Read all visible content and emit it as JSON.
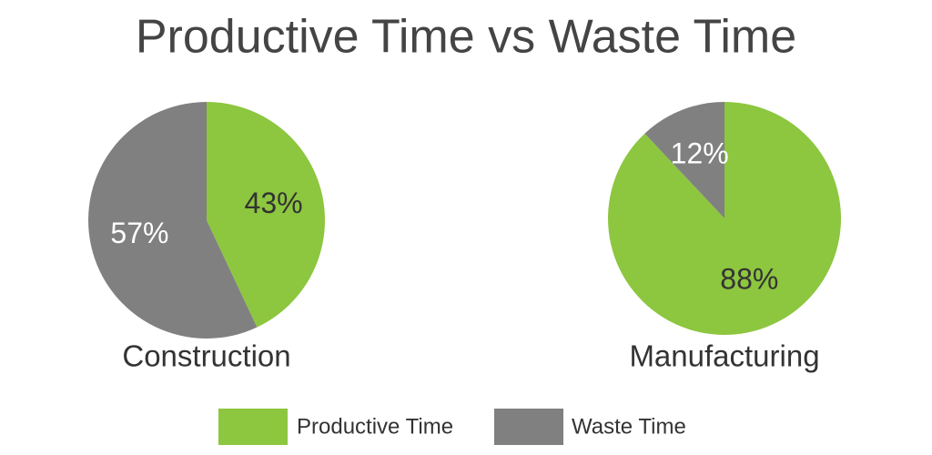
{
  "title": "Productive Time vs Waste Time",
  "chart_data": [
    {
      "type": "pie",
      "title": "Construction",
      "categories": [
        "Productive Time",
        "Waste Time"
      ],
      "values": [
        43,
        57
      ],
      "value_labels": [
        "43%",
        "57%"
      ],
      "colors": [
        "#8dc63f",
        "#808080"
      ]
    },
    {
      "type": "pie",
      "title": "Manufacturing",
      "categories": [
        "Productive Time",
        "Waste Time"
      ],
      "values": [
        88,
        12
      ],
      "value_labels": [
        "88%",
        "12%"
      ],
      "colors": [
        "#8dc63f",
        "#808080"
      ]
    }
  ]
}
